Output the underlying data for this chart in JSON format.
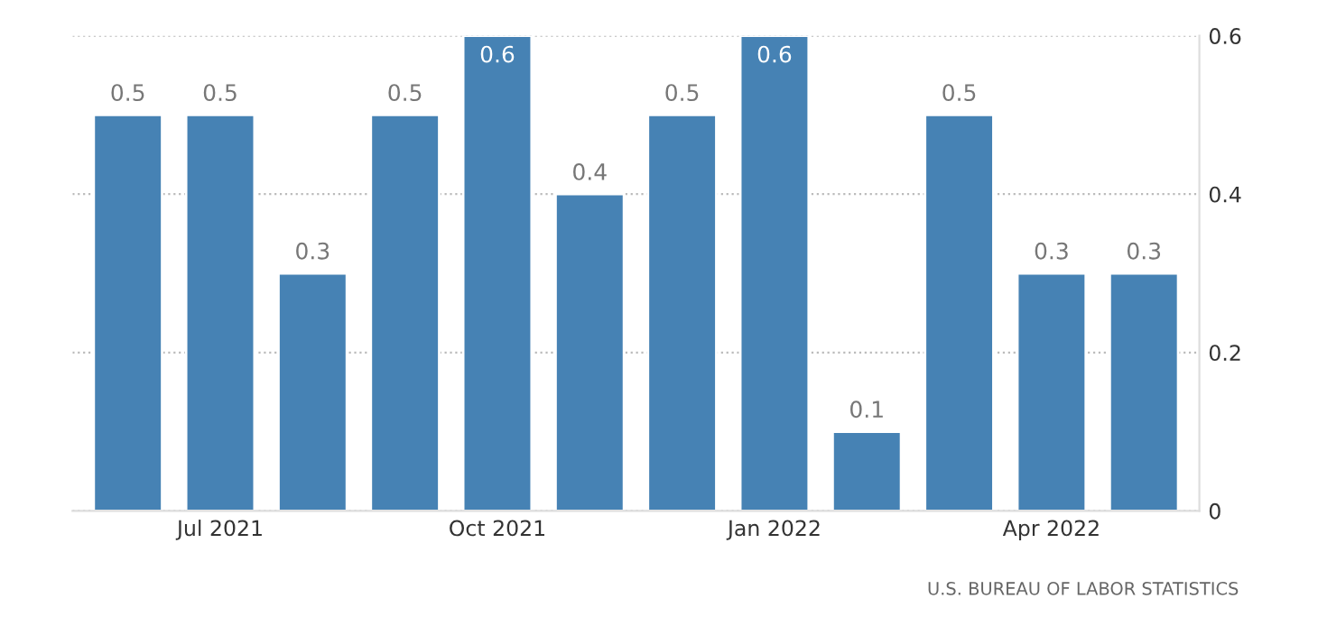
{
  "chart_data": {
    "type": "bar",
    "categories": [
      null,
      "Jul 2021",
      null,
      null,
      "Oct 2021",
      null,
      null,
      "Jan 2022",
      null,
      null,
      "Apr 2022",
      null
    ],
    "values": [
      0.5,
      0.5,
      0.3,
      0.5,
      0.6,
      0.4,
      0.5,
      0.6,
      0.1,
      0.5,
      0.3,
      0.3
    ],
    "color": "#4682b4",
    "ylim": [
      0,
      0.6
    ],
    "yticks": [
      0,
      0.2,
      0.4,
      0.6
    ],
    "grid": "y",
    "data_labels": true,
    "annotations": [
      "U.S. BUREAU OF LABOR STATISTICS"
    ]
  }
}
